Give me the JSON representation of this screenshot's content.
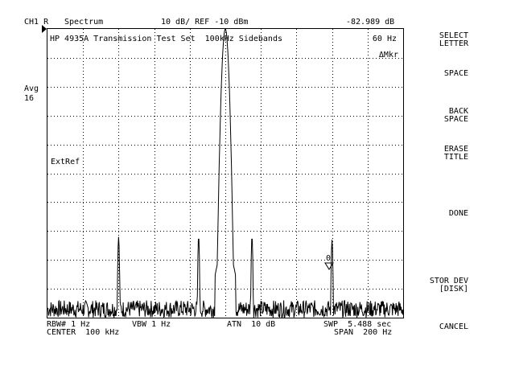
{
  "header": {
    "channel": "CH1 R",
    "mode": "Spectrum",
    "scale": "10 dB/ REF -10 dBm",
    "marker_value": "-82.989 dB"
  },
  "screen": {
    "title": "HP 4935A Transmission Test Set  100kHz Sidebands",
    "marker_freq": "60 Hz",
    "delta_marker_label": "ΔMkr",
    "ext_ref_label": "ExtRef",
    "marker_number": "0"
  },
  "avg": {
    "label": "Avg",
    "count": "16"
  },
  "footer": {
    "rbw": "RBW# 1 Hz",
    "vbw": "VBW 1 Hz",
    "atn": "ATN  10 dB",
    "swp": "SWP  5.488 sec",
    "center": "CENTER  100 kHz",
    "span": "SPAN  200 Hz"
  },
  "softkeys": [
    {
      "lines": [
        "SELECT",
        "LETTER"
      ]
    },
    {
      "lines": [
        "SPACE"
      ]
    },
    {
      "lines": [
        "BACK",
        "SPACE"
      ]
    },
    {
      "lines": [
        "ERASE",
        "TITLE"
      ]
    },
    {
      "lines": [
        "DONE"
      ]
    },
    {
      "lines": [
        "STOR DEV",
        "[DISK]"
      ]
    },
    {
      "lines": [
        "CANCEL"
      ]
    }
  ],
  "chart_data": {
    "type": "line",
    "x_range_hz": [
      -100,
      100
    ],
    "y_range_db": [
      -110,
      -10
    ],
    "grid": true,
    "peaks": [
      {
        "offset_hz": -60,
        "level_db": -82
      },
      {
        "offset_hz": -15,
        "level_db": -82
      },
      {
        "offset_hz": 0,
        "level_db": -10
      },
      {
        "offset_hz": 15,
        "level_db": -82
      },
      {
        "offset_hz": 60,
        "level_db": -83
      }
    ],
    "noise_floor_db": -107
  }
}
